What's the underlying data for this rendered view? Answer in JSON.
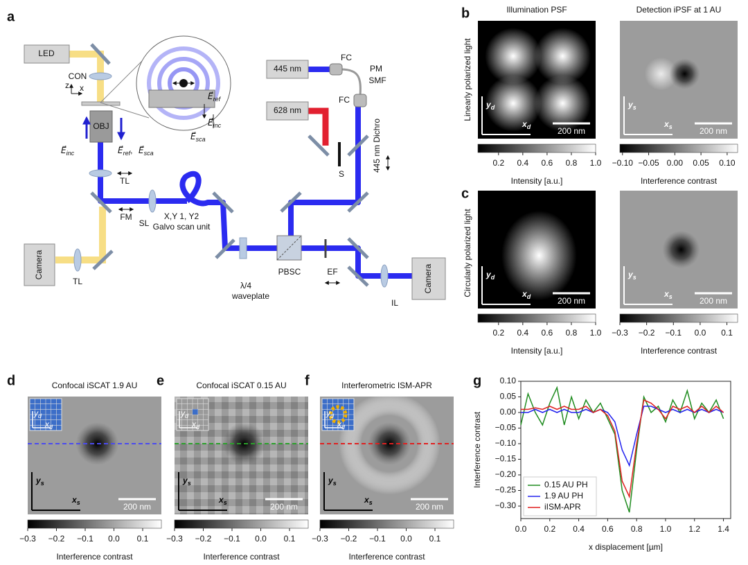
{
  "panel_labels": [
    "a",
    "b",
    "c",
    "d",
    "e",
    "f",
    "g"
  ],
  "row_labels": [
    "Linearly polarized light",
    "Circularly polarized light"
  ],
  "setup": {
    "led": "LED",
    "con": "CON",
    "axis_z": "z",
    "axis_x": "x",
    "obj": "OBJ",
    "e_inc": {
      "symbol": "E⃗",
      "sub": "inc"
    },
    "e_ref": {
      "symbol": "E⃗",
      "sub": "ref",
      "sep": ","
    },
    "e_sca": {
      "symbol": "E⃗",
      "sub": "sca"
    },
    "inset_e_ref": {
      "symbol": "E⃗",
      "sub": "ref"
    },
    "inset_e_inc": {
      "symbol": "E⃗",
      "sub": "inc"
    },
    "inset_e_sca": {
      "symbol": "E⃗",
      "sub": "sca"
    },
    "tl_top": "TL",
    "fm": "FM",
    "sl": "SL",
    "galvo_1": "X,Y 1, Y2",
    "galvo_2": "Galvo scan unit",
    "camera_left": "Camera",
    "tl_left": "TL",
    "waveplate_1": "λ/4",
    "waveplate_2": "waveplate",
    "pbsc": "PBSC",
    "ef": "EF",
    "il": "IL",
    "camera_right": "Camera",
    "laser_445": "445 nm",
    "laser_628": "628 nm",
    "fc_top": "FC",
    "pm": "PM",
    "smf": "SMF",
    "fc_bottom": "FC",
    "s": "S",
    "dichro": "445 nm Dichro"
  },
  "images": [
    {
      "title": "Illumination PSF",
      "axes": [
        {
          "symbol": "y",
          "sub": "d"
        },
        {
          "symbol": "x",
          "sub": "d"
        }
      ],
      "scale_bar": "200 nm"
    },
    {
      "title": "Detection iPSF at 1 AU",
      "axes": [
        {
          "symbol": "y",
          "sub": "s"
        },
        {
          "symbol": "x",
          "sub": "s"
        }
      ],
      "scale_bar": "200 nm"
    },
    {
      "axes": [
        {
          "symbol": "y",
          "sub": "d"
        },
        {
          "symbol": "x",
          "sub": "d"
        }
      ],
      "scale_bar": "200 nm"
    },
    {
      "axes": [
        {
          "symbol": "y",
          "sub": "s"
        },
        {
          "symbol": "x",
          "sub": "s"
        }
      ],
      "scale_bar": "200 nm"
    },
    {
      "title": "Confocal iSCAT 1.9 AU",
      "inset_axes": [
        {
          "symbol": "y",
          "sub": "d"
        },
        {
          "symbol": "x",
          "sub": "d"
        }
      ],
      "axes": [
        {
          "symbol": "y",
          "sub": "s"
        },
        {
          "symbol": "x",
          "sub": "s"
        }
      ],
      "scale_bar": "200 nm"
    },
    {
      "title": "Confocal iSCAT 0.15 AU",
      "inset_axes": [
        {
          "symbol": "y",
          "sub": "d"
        },
        {
          "symbol": "x",
          "sub": "d"
        }
      ],
      "axes": [
        {
          "symbol": "y",
          "sub": "s"
        },
        {
          "symbol": "x",
          "sub": "s"
        }
      ],
      "scale_bar": "200 nm"
    },
    {
      "title": "Interferometric ISM-APR",
      "inset_axes": [
        {
          "symbol": "y",
          "sub": "d"
        },
        {
          "symbol": "x",
          "sub": "d"
        }
      ],
      "axes": [
        {
          "symbol": "y",
          "sub": "s"
        },
        {
          "symbol": "x",
          "sub": "s"
        }
      ],
      "scale_bar": "200 nm"
    }
  ],
  "colorbars": [
    {
      "label": "Intensity [a.u.]",
      "lim": [
        0.03,
        1.0
      ],
      "ticks": [
        0.2,
        0.4,
        0.6,
        0.8,
        {
          "value": 1.0,
          "label": "1.0"
        }
      ]
    },
    {
      "label": "Interference contrast",
      "lim": [
        -0.105,
        0.12
      ],
      "ticks": [
        {
          "value": -0.1,
          "label": "−0.10"
        },
        {
          "value": -0.05,
          "label": "−0.05"
        },
        {
          "value": 0,
          "label": "0.00"
        },
        {
          "value": 0.05,
          "label": "0.05"
        },
        {
          "value": 0.1,
          "label": "0.10"
        }
      ]
    },
    {
      "label": "Intensity [a.u.]",
      "lim": [
        0.03,
        1.0
      ],
      "ticks": [
        0.2,
        0.4,
        0.6,
        0.8,
        {
          "value": 1.0,
          "label": "1.0"
        }
      ]
    },
    {
      "label": "Interference contrast",
      "lim": [
        -0.3,
        0.14
      ],
      "ticks": [
        {
          "value": -0.3,
          "label": "−0.3"
        },
        {
          "value": -0.2,
          "label": "−0.2"
        },
        {
          "value": -0.1,
          "label": "−0.1"
        },
        {
          "value": 0,
          "label": "0.0"
        },
        0.1
      ]
    },
    {
      "label": "Interference contrast",
      "lim": [
        -0.3,
        0.165
      ],
      "ticks": [
        {
          "value": -0.3,
          "label": "−0.3"
        },
        {
          "value": -0.2,
          "label": "−0.2"
        },
        {
          "value": -0.1,
          "label": "−0.1"
        },
        {
          "value": 0,
          "label": "0.0"
        },
        0.1
      ]
    },
    {
      "label": "Interference contrast",
      "lim": [
        -0.3,
        0.165
      ],
      "ticks": [
        {
          "value": -0.3,
          "label": "−0.3"
        },
        {
          "value": -0.2,
          "label": "−0.2"
        },
        {
          "value": -0.1,
          "label": "−0.1"
        },
        {
          "value": 0,
          "label": "0.0"
        },
        0.1
      ]
    },
    {
      "label": "Interference contrast",
      "lim": [
        -0.3,
        0.165
      ],
      "ticks": [
        {
          "value": -0.3,
          "label": "−0.3"
        },
        {
          "value": -0.2,
          "label": "−0.2"
        },
        {
          "value": -0.1,
          "label": "−0.1"
        },
        {
          "value": 0,
          "label": "0.0"
        },
        0.1
      ]
    }
  ],
  "chart_data": {
    "type": "line",
    "xlabel": "x displacement [µm]",
    "ylabel": "Interference contrast",
    "x": [
      0,
      0.05,
      0.1,
      0.15,
      0.2,
      0.25,
      0.3,
      0.35,
      0.4,
      0.45,
      0.5,
      0.55,
      0.6,
      0.65,
      0.7,
      0.75,
      0.8,
      0.85,
      0.9,
      0.95,
      1.0,
      1.05,
      1.1,
      1.15,
      1.2,
      1.25,
      1.3,
      1.35,
      1.4
    ],
    "series": [
      {
        "name": "0.15 AU PH",
        "color": "#1f8c1f",
        "values": [
          -0.04,
          0.06,
          0.0,
          -0.04,
          0.03,
          0.08,
          -0.04,
          0.05,
          -0.02,
          0.04,
          0.0,
          0.03,
          -0.02,
          -0.07,
          -0.25,
          -0.32,
          -0.12,
          0.05,
          0.0,
          0.02,
          -0.03,
          0.04,
          0.0,
          0.07,
          -0.02,
          0.03,
          0.0,
          0.04,
          -0.02
        ]
      },
      {
        "name": "1.9 AU PH",
        "color": "#2222ee",
        "values": [
          0.0,
          0.0,
          0.01,
          0.0,
          0.01,
          0.0,
          0.01,
          0.0,
          0.0,
          0.01,
          0.0,
          0.01,
          0.0,
          -0.03,
          -0.12,
          -0.17,
          -0.07,
          0.02,
          0.02,
          0.01,
          0.0,
          0.01,
          0.0,
          0.01,
          0.0,
          0.01,
          0.0,
          0.01,
          0.0
        ]
      },
      {
        "name": "iISM-APR",
        "color": "#e02020",
        "values": [
          0.01,
          0.01,
          0.015,
          0.01,
          0.02,
          0.01,
          0.02,
          0.01,
          0.01,
          0.02,
          0.0,
          0.01,
          -0.01,
          -0.06,
          -0.22,
          -0.27,
          -0.1,
          0.04,
          0.03,
          0.01,
          -0.02,
          0.02,
          0.01,
          0.02,
          0.0,
          0.02,
          0.0,
          0.02,
          0.0
        ]
      }
    ],
    "xlim": [
      0,
      1.45
    ],
    "ylim": [
      -0.34,
      0.1
    ],
    "xticks": [
      {
        "value": 0,
        "label": "0.0"
      },
      0.2,
      0.4,
      0.6,
      0.8,
      {
        "value": 1.0,
        "label": "1.0"
      },
      1.2,
      1.4
    ],
    "yticks": [
      {
        "value": 0.1,
        "label": "0.10"
      },
      0.05,
      {
        "value": 0,
        "label": "0.00"
      },
      {
        "value": -0.05,
        "label": "−0.05"
      },
      {
        "value": -0.1,
        "label": "−0.10"
      },
      {
        "value": -0.15,
        "label": "−0.15"
      },
      {
        "value": -0.2,
        "label": "−0.20"
      },
      {
        "value": -0.25,
        "label": "−0.25"
      },
      {
        "value": -0.3,
        "label": "−0.30"
      }
    ],
    "legend": "lower left"
  }
}
